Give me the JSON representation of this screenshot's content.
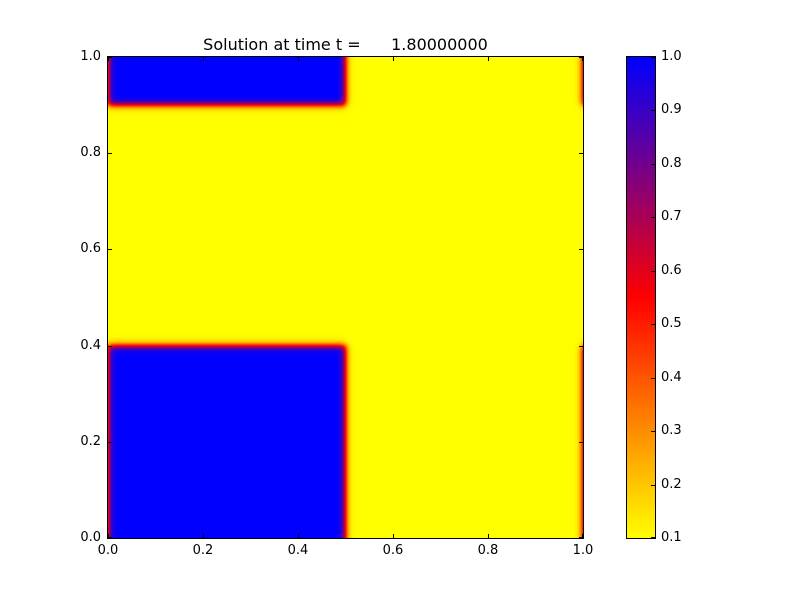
{
  "chart_data": {
    "type": "heatmap",
    "title": "Solution at time t =      1.80000000",
    "xlabel": "",
    "ylabel": "",
    "x_range": [
      0.0,
      1.0
    ],
    "y_range": [
      0.0,
      1.0
    ],
    "x_tick_values": [
      0.0,
      0.2,
      0.4,
      0.6,
      0.8,
      1.0
    ],
    "x_tick_labels": [
      "0.0",
      "0.2",
      "0.4",
      "0.6",
      "0.8",
      "1.0"
    ],
    "y_tick_values": [
      0.0,
      0.2,
      0.4,
      0.6,
      0.8,
      1.0
    ],
    "y_tick_labels": [
      "0.0",
      "0.2",
      "0.4",
      "0.6",
      "0.8",
      "1.0"
    ],
    "grid": false,
    "field": {
      "description": "Scalar field u(x,y): high-value plateaus on a low background with thin smooth reaction fronts; domain periodic in x and y so thin front strips appear along x=0 and x=1 edges.",
      "background_value": 0.1,
      "high_value": 1.0,
      "blocks": [
        {
          "x0": 0.0,
          "x1": 0.5,
          "y0": 0.0,
          "y1": 0.4
        },
        {
          "x0": 0.0,
          "x1": 0.5,
          "y0": 0.9,
          "y1": 1.0
        }
      ],
      "front_width": 0.004,
      "periodic": true
    },
    "colormap": {
      "stops": [
        {
          "value": 0.1,
          "color": "#ffff00"
        },
        {
          "value": 0.55,
          "color": "#ff0000"
        },
        {
          "value": 1.0,
          "color": "#0000ff"
        }
      ]
    },
    "colorbar": {
      "min": 0.1,
      "max": 1.0,
      "tick_values": [
        0.1,
        0.2,
        0.3,
        0.4,
        0.5,
        0.6,
        0.7,
        0.8,
        0.9,
        1.0
      ],
      "tick_labels": [
        "0.1",
        "0.2",
        "0.3",
        "0.4",
        "0.5",
        "0.6",
        "0.7",
        "0.8",
        "0.9",
        "1.0"
      ],
      "position": "right"
    },
    "colors": {
      "figure_background": "#ffffff",
      "frame": "#000000",
      "text": "#000000"
    }
  }
}
